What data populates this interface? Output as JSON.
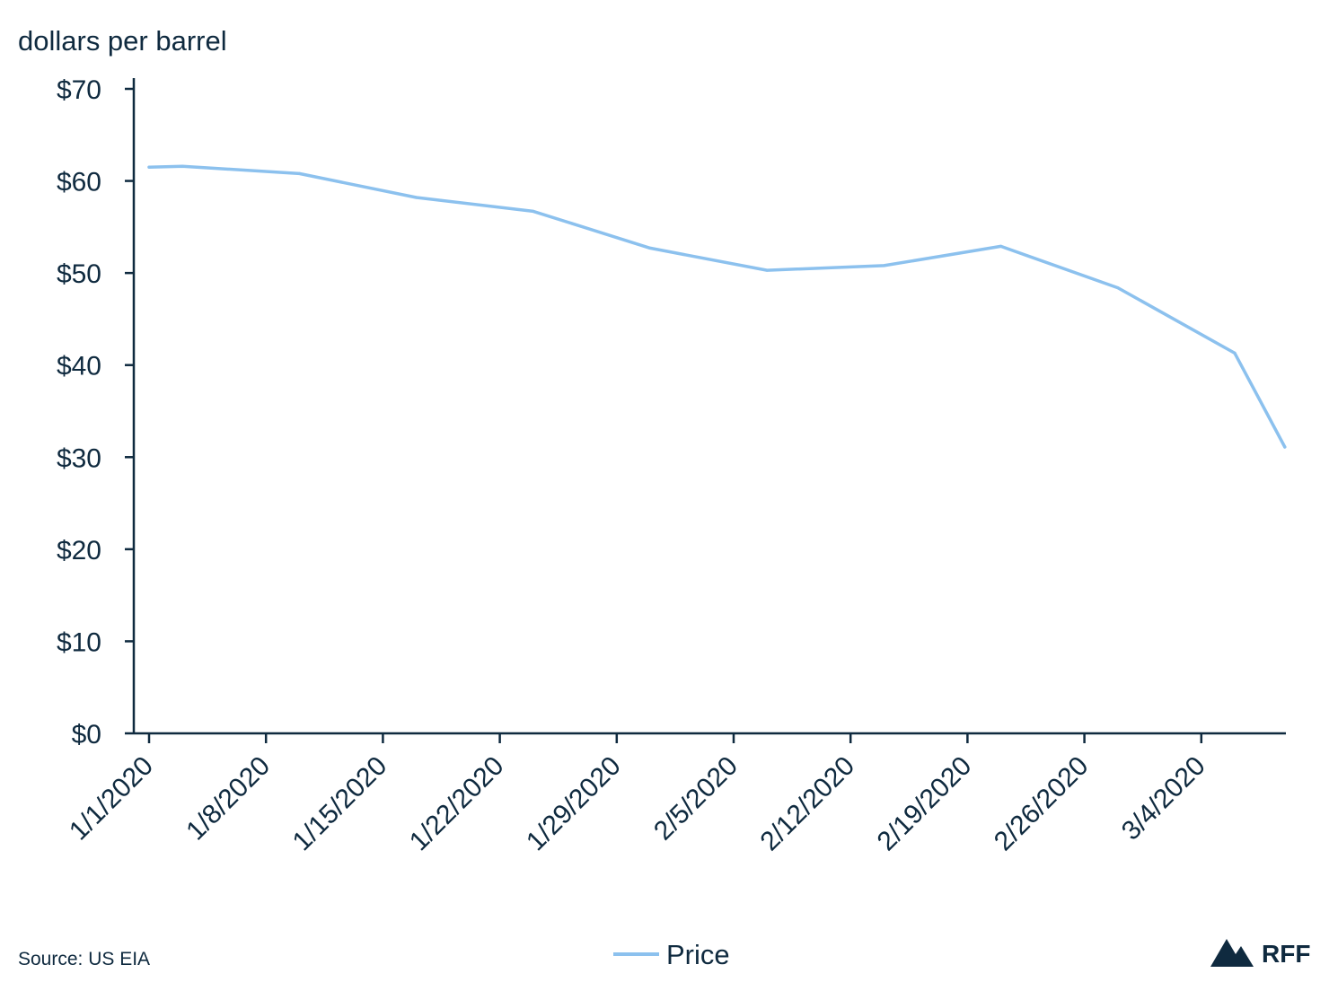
{
  "chart_data": {
    "type": "line",
    "ylabel": "dollars per barrel",
    "xlabel": "",
    "ylim": [
      0,
      70
    ],
    "yticks": [
      0,
      10,
      20,
      30,
      40,
      50,
      60,
      70
    ],
    "ytick_labels": [
      "$0",
      "$10",
      "$20",
      "$30",
      "$40",
      "$50",
      "$60",
      "$70"
    ],
    "x_range_days": [
      0,
      67
    ],
    "xticks": [
      {
        "day": 0,
        "label": "1/1/2020"
      },
      {
        "day": 7,
        "label": "1/8/2020"
      },
      {
        "day": 14,
        "label": "1/15/2020"
      },
      {
        "day": 21,
        "label": "1/22/2020"
      },
      {
        "day": 28,
        "label": "1/29/2020"
      },
      {
        "day": 35,
        "label": "2/5/2020"
      },
      {
        "day": 42,
        "label": "2/12/2020"
      },
      {
        "day": 49,
        "label": "2/19/2020"
      },
      {
        "day": 56,
        "label": "2/26/2020"
      },
      {
        "day": 63,
        "label": "3/4/2020"
      }
    ],
    "grid": false,
    "legend_position": "bottom-center",
    "series": [
      {
        "name": "Price",
        "color": "#8cc1ee",
        "points": [
          {
            "day": 0,
            "value": 61.5
          },
          {
            "day": 2,
            "value": 61.6
          },
          {
            "day": 9,
            "value": 60.8
          },
          {
            "day": 16,
            "value": 58.2
          },
          {
            "day": 23,
            "value": 56.7
          },
          {
            "day": 30,
            "value": 52.7
          },
          {
            "day": 37,
            "value": 50.3
          },
          {
            "day": 44,
            "value": 50.8
          },
          {
            "day": 51,
            "value": 52.9
          },
          {
            "day": 58,
            "value": 48.4
          },
          {
            "day": 65,
            "value": 41.3
          },
          {
            "day": 68,
            "value": 31.1
          }
        ]
      }
    ]
  },
  "footer": {
    "source": "Source: US EIA",
    "logo_text": "RFF"
  },
  "colors": {
    "text": "#0f2a3f",
    "axis": "#0f2a3f",
    "series": "#8cc1ee"
  }
}
